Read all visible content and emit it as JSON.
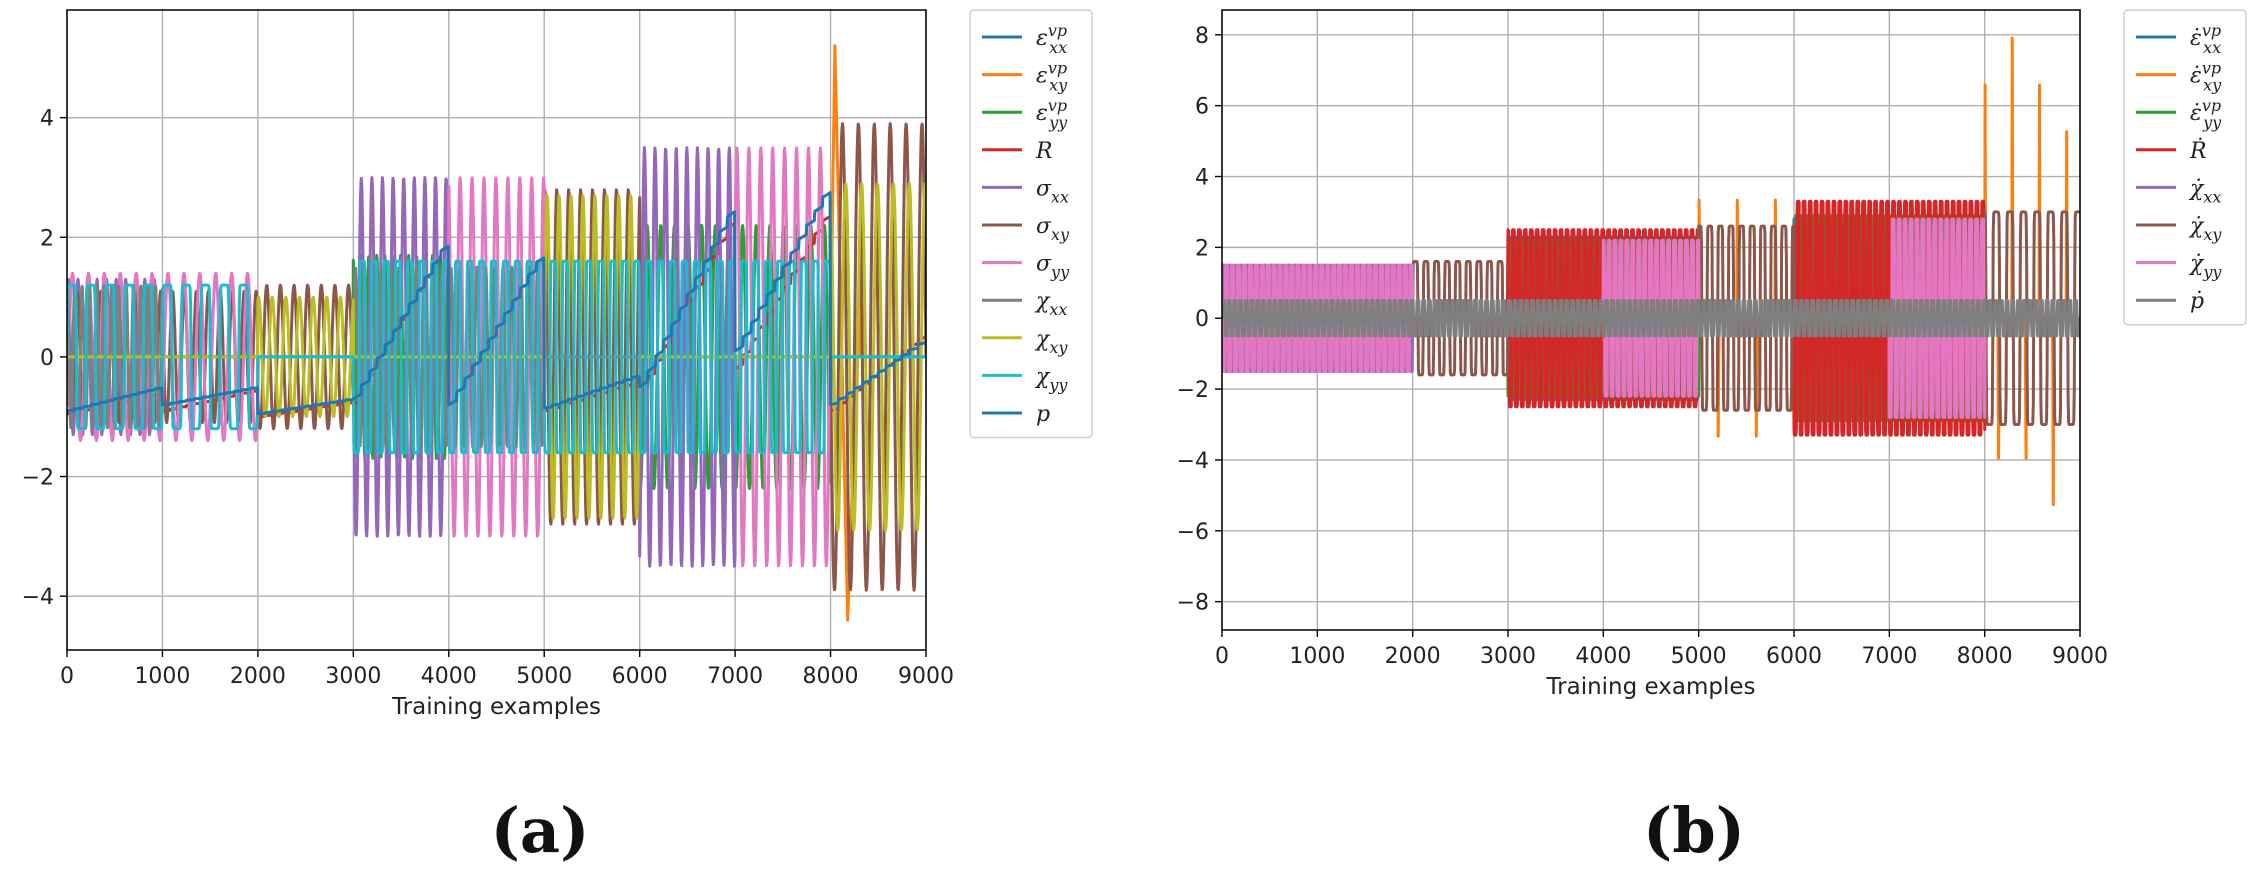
{
  "chart_data": [
    {
      "id": "a",
      "panel_label": "(a)",
      "type": "line",
      "xlabel": "Training examples",
      "ylabel": "",
      "xlim": [
        0,
        9000
      ],
      "ylim": [
        -4.9,
        5.8
      ],
      "xticks": [
        0,
        1000,
        2000,
        3000,
        4000,
        5000,
        6000,
        7000,
        8000,
        9000
      ],
      "yticks": [
        -4,
        -2,
        0,
        2,
        4
      ],
      "grid": true,
      "legend_position": "outside-right",
      "series": [
        {
          "name": "ε_xx^vp",
          "color": "#1f77b4",
          "kind": "zero",
          "params": {}
        },
        {
          "name": "ε_xy^vp",
          "color": "#ff7f0e",
          "kind": "spike",
          "params": {
            "segments": [
              [
                8000,
                8300,
                5.2,
                -4.4,
                1.2
              ]
            ]
          }
        },
        {
          "name": "ε_yy^vp",
          "color": "#2ca02c",
          "kind": "osc",
          "params": {
            "segments": [
              [
                3000,
                4000,
                1.7,
                12,
                0.3
              ],
              [
                6000,
                8000,
                2.2,
                14,
                0.7
              ]
            ]
          }
        },
        {
          "name": "R",
          "color": "#d62728",
          "kind": "ramp",
          "params": {
            "segments": [
              [
                0,
                1000,
                -0.95,
                -0.6
              ],
              [
                1000,
                2000,
                -0.9,
                -0.55
              ],
              [
                2000,
                3000,
                -1.0,
                -0.75
              ],
              [
                3000,
                4000,
                -0.8,
                2.0
              ],
              [
                5000,
                6000,
                -0.9,
                -0.4
              ],
              [
                6000,
                7000,
                -0.6,
                2.4
              ],
              [
                7000,
                8000,
                -0.2,
                2.5
              ],
              [
                8000,
                9000,
                -0.9,
                0.4
              ]
            ]
          }
        },
        {
          "name": "σ_xx",
          "color": "#9467bd",
          "kind": "osc",
          "params": {
            "segments": [
              [
                0,
                1000,
                1.3,
                10,
                0.1
              ],
              [
                3000,
                4000,
                3.0,
                9,
                0.5
              ],
              [
                6000,
                7000,
                3.5,
                9,
                0.8
              ]
            ]
          }
        },
        {
          "name": "σ_xy",
          "color": "#8c564b",
          "kind": "osc",
          "params": {
            "segments": [
              [
                0,
                2000,
                1.1,
                16,
                0.4
              ],
              [
                2000,
                3000,
                1.2,
                7,
                0.6
              ],
              [
                5000,
                6000,
                2.8,
                8,
                0.2
              ],
              [
                8000,
                9000,
                3.9,
                6,
                0.5
              ]
            ]
          }
        },
        {
          "name": "σ_yy",
          "color": "#e377c2",
          "kind": "osc",
          "params": {
            "segments": [
              [
                0,
                2000,
                1.4,
                12,
                0.9
              ],
              [
                4000,
                5000,
                3.0,
                8,
                0.3
              ],
              [
                7000,
                8000,
                3.5,
                8,
                0.1
              ]
            ]
          }
        },
        {
          "name": "χ_xx",
          "color": "#7f7f7f",
          "kind": "osc",
          "params": {
            "segments": [
              [
                0,
                1000,
                1.2,
                13,
                0.2
              ],
              [
                3000,
                5000,
                1.5,
                22,
                0.0
              ]
            ]
          }
        },
        {
          "name": "χ_xy",
          "color": "#bcbd22",
          "kind": "osc",
          "params": {
            "segments": [
              [
                2000,
                3000,
                1.0,
                7,
                0.2
              ],
              [
                5000,
                6000,
                2.7,
                8,
                0.0
              ],
              [
                8000,
                9000,
                2.9,
                6,
                0.3
              ]
            ]
          }
        },
        {
          "name": "χ_yy",
          "color": "#17becf",
          "kind": "square",
          "params": {
            "segments": [
              [
                0,
                2000,
                1.2,
                10,
                0.0
              ],
              [
                3000,
                8000,
                1.6,
                40,
                0.5
              ]
            ]
          }
        },
        {
          "name": "p",
          "color": "#1f77b4",
          "kind": "ramp",
          "params": {
            "segments": [
              [
                0,
                1000,
                -0.9,
                -0.5
              ],
              [
                1000,
                2000,
                -0.8,
                -0.5
              ],
              [
                2000,
                3000,
                -0.95,
                -0.7
              ],
              [
                3000,
                4000,
                -0.7,
                2.0
              ],
              [
                4000,
                5000,
                -0.8,
                1.8
              ],
              [
                5000,
                6000,
                -0.85,
                -0.3
              ],
              [
                6000,
                7000,
                -0.5,
                2.6
              ],
              [
                7000,
                8000,
                0.1,
                2.9
              ],
              [
                8000,
                9000,
                -0.8,
                0.3
              ]
            ]
          }
        }
      ]
    },
    {
      "id": "b",
      "panel_label": "(b)",
      "type": "line",
      "xlabel": "Training examples",
      "ylabel": "",
      "xlim": [
        0,
        9000
      ],
      "ylim": [
        -8.8,
        8.7
      ],
      "xticks": [
        0,
        1000,
        2000,
        3000,
        4000,
        5000,
        6000,
        7000,
        8000,
        9000
      ],
      "yticks": [
        -8,
        -6,
        -4,
        -2,
        0,
        2,
        4,
        6,
        8
      ],
      "grid": true,
      "legend_position": "outside-right",
      "series": [
        {
          "name": "ε̇_xx^vp",
          "color": "#1f77b4",
          "kind": "square",
          "params": {
            "segments": [
              [
                3000,
                5000,
                2.3,
                32,
                0.1
              ],
              [
                6000,
                8000,
                2.8,
                32,
                0.3
              ]
            ]
          }
        },
        {
          "name": "ε̇_xy^vp",
          "color": "#ff7f0e",
          "kind": "spikes",
          "params": {
            "segments": [
              [
                5000,
                6000,
                4.0,
                5
              ],
              [
                8000,
                9000,
                7.9,
                7
              ]
            ]
          }
        },
        {
          "name": "ε̇_yy^vp",
          "color": "#2ca02c",
          "kind": "square",
          "params": {
            "segments": [
              [
                3000,
                5000,
                2.2,
                32,
                0.6
              ],
              [
                6000,
                8000,
                2.9,
                32,
                0.8
              ]
            ]
          }
        },
        {
          "name": "Ṙ",
          "color": "#d62728",
          "kind": "square",
          "params": {
            "segments": [
              [
                3000,
                5000,
                2.5,
                32,
                0.35
              ],
              [
                6000,
                8000,
                3.3,
                32,
                0.55
              ]
            ]
          }
        },
        {
          "name": "χ̇_xx",
          "color": "#9467bd",
          "kind": "square",
          "params": {
            "segments": [
              [
                0,
                2000,
                1.5,
                32,
                0.0
              ]
            ]
          }
        },
        {
          "name": "χ̇_xy",
          "color": "#8c564b",
          "kind": "square",
          "params": {
            "segments": [
              [
                2000,
                3000,
                1.6,
                9,
                0.0
              ],
              [
                5000,
                6000,
                2.6,
                9,
                0.2
              ],
              [
                8000,
                9000,
                3.0,
                7,
                0.4
              ]
            ]
          }
        },
        {
          "name": "χ̇_yy",
          "color": "#e377c2",
          "kind": "square",
          "params": {
            "segments": [
              [
                0,
                2000,
                1.5,
                32,
                0.5
              ],
              [
                4000,
                5000,
                2.2,
                16,
                0.3
              ],
              [
                7000,
                8000,
                2.8,
                16,
                0.6
              ]
            ]
          }
        },
        {
          "name": "ṗ",
          "color": "#7f7f7f",
          "kind": "square",
          "params": {
            "segments": [
              [
                0,
                9000,
                0.5,
                150,
                0.0
              ]
            ]
          }
        }
      ]
    }
  ]
}
